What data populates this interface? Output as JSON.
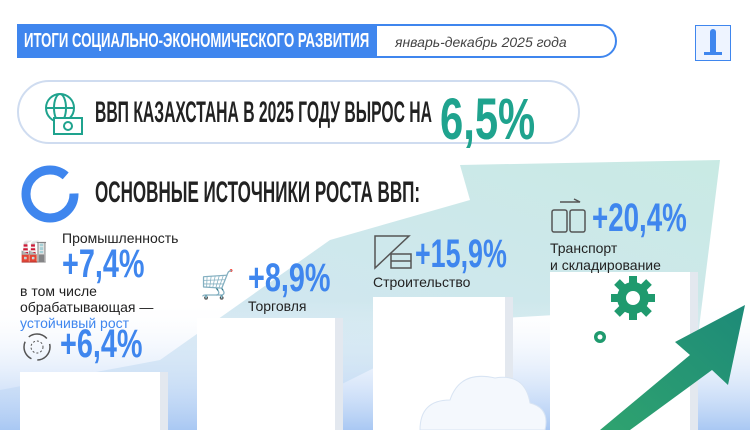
{
  "header": {
    "title": "ИТОГИ СОЦИАЛЬНО-ЭКОНОМИЧЕСКОГО РАЗВИТИЯ",
    "period": "январь-декабрь 2025 года"
  },
  "headline": {
    "text": "ВВП КАЗАХСТАНА В 2025 ГОДУ ВЫРОС НА",
    "value": "6,5%"
  },
  "section_title": "ОСНОВНЫЕ ИСТОЧНИКИ РОСТА ВВП:",
  "sectors": [
    {
      "label": "Промышленность",
      "value": "+7,4%",
      "icon": "factory-icon"
    },
    {
      "label": "Торговля",
      "value": "+8,9%",
      "icon": "cart-hand-icon"
    },
    {
      "label": "Строительство",
      "value": "+15,9%",
      "icon": "ruler-bricks-icon"
    },
    {
      "label": "Транспорт",
      "label2": "и складирование",
      "value": "+20,4%",
      "icon": "transport-icon"
    }
  ],
  "manufacturing": {
    "line1": "в том числе",
    "line2": "обрабатывающая —",
    "line3": "устойчивый рост",
    "value": "+6,4%"
  },
  "colors": {
    "blue": "#3f86ee",
    "teal": "#1fa38e",
    "green": "#1f9a6e"
  }
}
